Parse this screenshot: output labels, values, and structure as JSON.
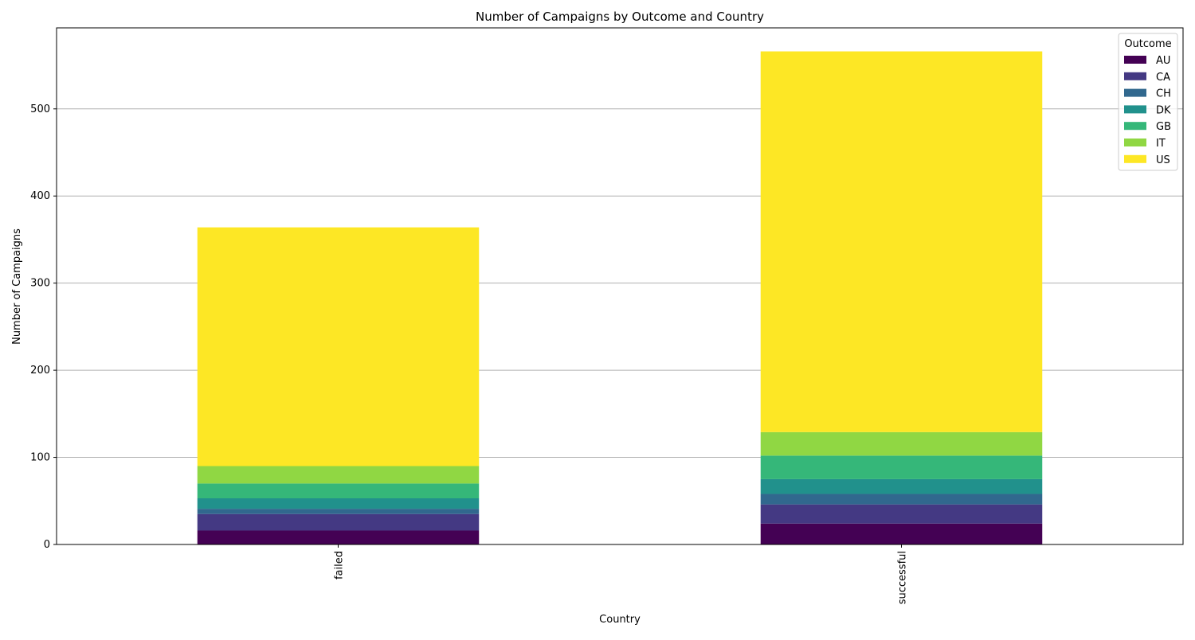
{
  "chart_data": {
    "type": "bar",
    "stacked": true,
    "title": "Number of Campaigns by Outcome and Country",
    "xlabel": "Country",
    "ylabel": "Number of Campaigns",
    "categories": [
      "failed",
      "successful"
    ],
    "ylim": [
      0,
      593
    ],
    "yticks": [
      0,
      100,
      200,
      300,
      400,
      500
    ],
    "grid": "horizontal",
    "legend_title": "Outcome",
    "legend_position": "top-right",
    "series": [
      {
        "name": "AU",
        "color": "#440154",
        "values": [
          16,
          24
        ]
      },
      {
        "name": "CA",
        "color": "#443983",
        "values": [
          19,
          22
        ]
      },
      {
        "name": "CH",
        "color": "#31688e",
        "values": [
          6,
          12
        ]
      },
      {
        "name": "DK",
        "color": "#21918c",
        "values": [
          12,
          17
        ]
      },
      {
        "name": "GB",
        "color": "#35b779",
        "values": [
          17,
          27
        ]
      },
      {
        "name": "IT",
        "color": "#90d743",
        "values": [
          20,
          27
        ]
      },
      {
        "name": "US",
        "color": "#fde725",
        "values": [
          274,
          437
        ]
      }
    ]
  }
}
